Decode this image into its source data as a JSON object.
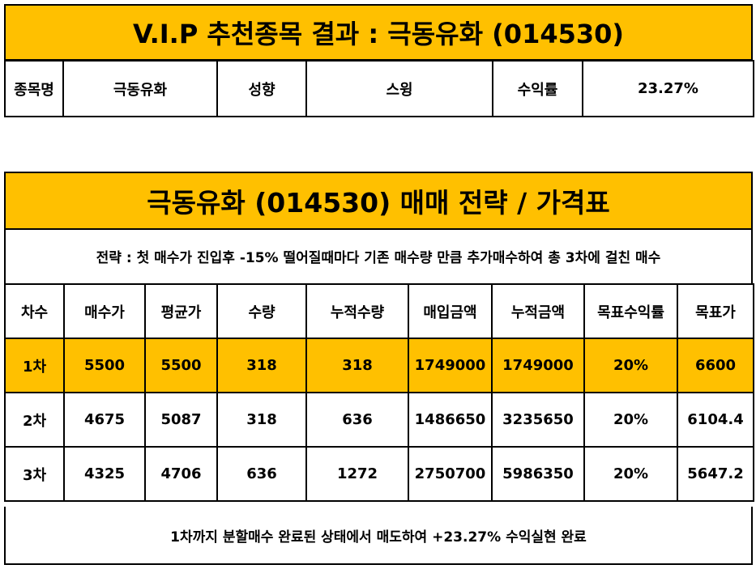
{
  "vip": {
    "title": "V.I.P 추천종목 결과 : 극동유화 (014530)",
    "labels": {
      "name": "종목명",
      "style": "성향",
      "return": "수익률"
    },
    "values": {
      "name": "극동유화",
      "style": "스윙",
      "return": "23.27%"
    }
  },
  "strategy": {
    "title": "극동유화 (014530) 매매 전략 / 가격표",
    "description": "전략 : 첫 매수가 진입후 -15% 떨어질때마다 기존 매수량 만큼 추가매수하여 총 3차에 걸친 매수",
    "headers": [
      "차수",
      "매수가",
      "평균가",
      "수량",
      "누적수량",
      "매입금액",
      "누적금액",
      "목표수익률",
      "목표가"
    ],
    "rows": [
      [
        "1차",
        "5500",
        "5500",
        "318",
        "318",
        "1749000",
        "1749000",
        "20%",
        "6600"
      ],
      [
        "2차",
        "4675",
        "5087",
        "318",
        "636",
        "1486650",
        "3235650",
        "20%",
        "6104.4"
      ],
      [
        "3차",
        "4325",
        "4706",
        "636",
        "1272",
        "2750700",
        "5986350",
        "20%",
        "5647.2"
      ]
    ],
    "footer": "1차까지 분할매수 완료된 상태에서 매도하여 +23.27% 수익실현 완료"
  },
  "colors": {
    "highlight": "#ffc000",
    "border": "#000000"
  }
}
